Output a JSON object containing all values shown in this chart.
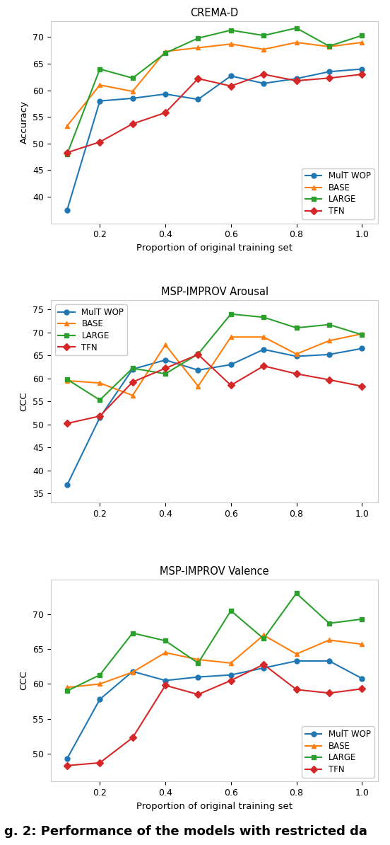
{
  "x": [
    0.1,
    0.2,
    0.3,
    0.4,
    0.5,
    0.6,
    0.7,
    0.8,
    0.9,
    1.0
  ],
  "crema": {
    "title": "CREMA-D",
    "ylabel": "Accuracy",
    "xlabel": "Proportion of original training set",
    "ylim": [
      35,
      73
    ],
    "yticks": [
      40,
      45,
      50,
      55,
      60,
      65,
      70
    ],
    "mult_wop": [
      37.5,
      58.0,
      58.5,
      59.3,
      58.3,
      62.7,
      61.3,
      62.2,
      63.5,
      64.0
    ],
    "base": [
      53.3,
      61.0,
      59.8,
      67.3,
      68.0,
      68.7,
      67.7,
      69.0,
      68.2,
      69.0
    ],
    "large": [
      48.0,
      64.0,
      62.3,
      67.0,
      69.8,
      71.3,
      70.3,
      71.7,
      68.3,
      70.3
    ],
    "tfn": [
      48.3,
      50.3,
      53.7,
      55.8,
      62.2,
      60.8,
      63.0,
      61.8,
      62.3,
      63.0
    ],
    "legend_loc": "lower right"
  },
  "arousal": {
    "title": "MSP-IMPROV Arousal",
    "ylabel": "CCC",
    "xlabel": "",
    "ylim": [
      33,
      77
    ],
    "yticks": [
      35,
      40,
      45,
      50,
      55,
      60,
      65,
      70,
      75
    ],
    "mult_wop": [
      36.8,
      51.5,
      62.0,
      64.0,
      61.8,
      63.0,
      66.3,
      64.8,
      65.2,
      66.5
    ],
    "base": [
      59.5,
      59.0,
      56.3,
      67.3,
      58.3,
      69.0,
      69.0,
      65.3,
      68.2,
      69.7
    ],
    "large": [
      59.8,
      55.3,
      62.2,
      61.0,
      65.3,
      74.0,
      73.3,
      71.0,
      71.7,
      69.5
    ],
    "tfn": [
      50.2,
      51.8,
      59.2,
      62.2,
      65.2,
      58.5,
      62.7,
      61.0,
      59.7,
      58.3
    ],
    "legend_loc": "upper left"
  },
  "valence": {
    "title": "MSP-IMPROV Valence",
    "ylabel": "CCC",
    "xlabel": "Proportion of original training set",
    "ylim": [
      46,
      75
    ],
    "yticks": [
      50,
      55,
      60,
      65,
      70
    ],
    "mult_wop": [
      49.3,
      57.8,
      61.8,
      60.5,
      61.0,
      61.3,
      62.3,
      63.3,
      63.3,
      60.8
    ],
    "base": [
      59.5,
      60.0,
      61.7,
      64.5,
      63.5,
      63.0,
      67.0,
      64.3,
      66.3,
      65.7
    ],
    "large": [
      59.0,
      61.3,
      67.3,
      66.2,
      63.0,
      70.5,
      66.5,
      73.0,
      68.7,
      69.3
    ],
    "tfn": [
      48.3,
      48.7,
      52.3,
      59.8,
      58.5,
      60.5,
      62.8,
      59.2,
      58.7,
      59.3
    ],
    "legend_loc": "lower right"
  },
  "colors": {
    "mult_wop": "#1f77b4",
    "base": "#ff7f0e",
    "large": "#2ca02c",
    "tfn": "#d62728"
  },
  "markers": {
    "mult_wop": "o",
    "base": "^",
    "large": "s",
    "tfn": "D"
  },
  "legend_labels": [
    "MulT WOP",
    "BASE",
    "LARGE",
    "TFN"
  ],
  "caption": "g. 2: Performance of the models with restricted da"
}
